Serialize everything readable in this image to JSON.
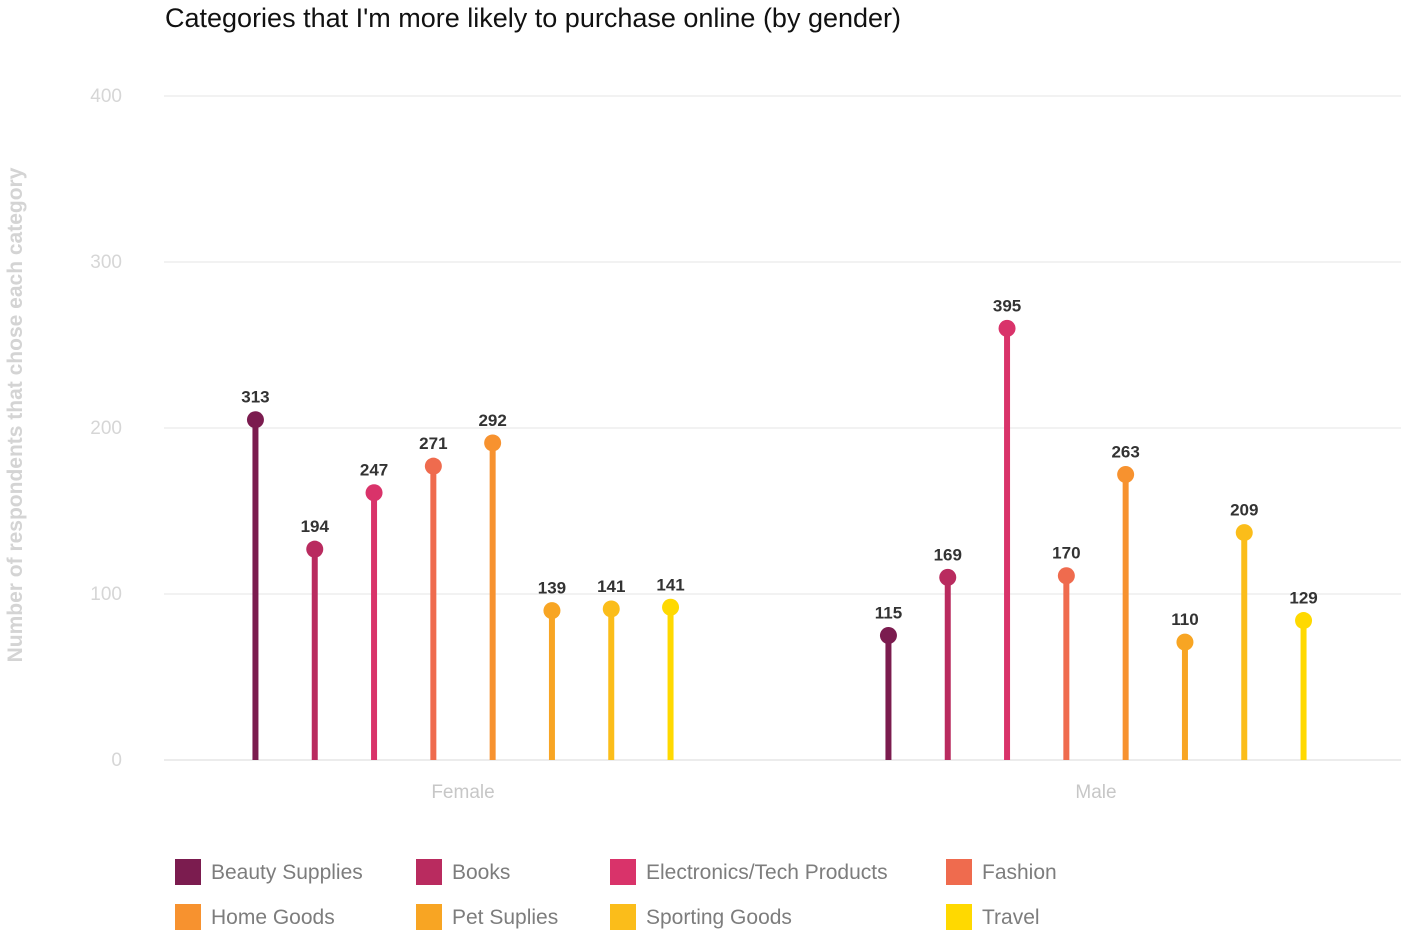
{
  "chart_data": {
    "type": "lollipop",
    "title": "Categories that I'm more likely to purchase online (by gender)",
    "ylabel": "Number of respondents that chose each category",
    "xlabel": "",
    "ylim": [
      0,
      400
    ],
    "yticks": [
      0,
      100,
      200,
      300,
      400
    ],
    "grid": true,
    "legend_position": "bottom",
    "categories": [
      "Female",
      "Male"
    ],
    "series": [
      {
        "name": "Beauty Supplies",
        "color": "#7b1c4f",
        "values": [
          313,
          115
        ],
        "plotted_values": [
          205,
          75
        ]
      },
      {
        "name": "Books",
        "color": "#b92b5f",
        "values": [
          194,
          169
        ],
        "plotted_values": [
          127,
          110
        ]
      },
      {
        "name": "Electronics/Tech Products",
        "color": "#d9336a",
        "values": [
          247,
          395
        ],
        "plotted_values": [
          161,
          260
        ]
      },
      {
        "name": "Fashion",
        "color": "#ef6b4e",
        "values": [
          271,
          170
        ],
        "plotted_values": [
          177,
          111
        ]
      },
      {
        "name": "Home Goods",
        "color": "#f7922f",
        "values": [
          292,
          263
        ],
        "plotted_values": [
          191,
          172
        ]
      },
      {
        "name": "Pet Suplies",
        "color": "#f8a523",
        "values": [
          139,
          110
        ],
        "plotted_values": [
          90,
          71
        ]
      },
      {
        "name": "Sporting Goods",
        "color": "#fbbd1a",
        "values": [
          141,
          209
        ],
        "plotted_values": [
          91,
          137
        ]
      },
      {
        "name": "Travel",
        "color": "#ffd900",
        "values": [
          141,
          129
        ],
        "plotted_values": [
          92,
          84
        ]
      }
    ]
  }
}
